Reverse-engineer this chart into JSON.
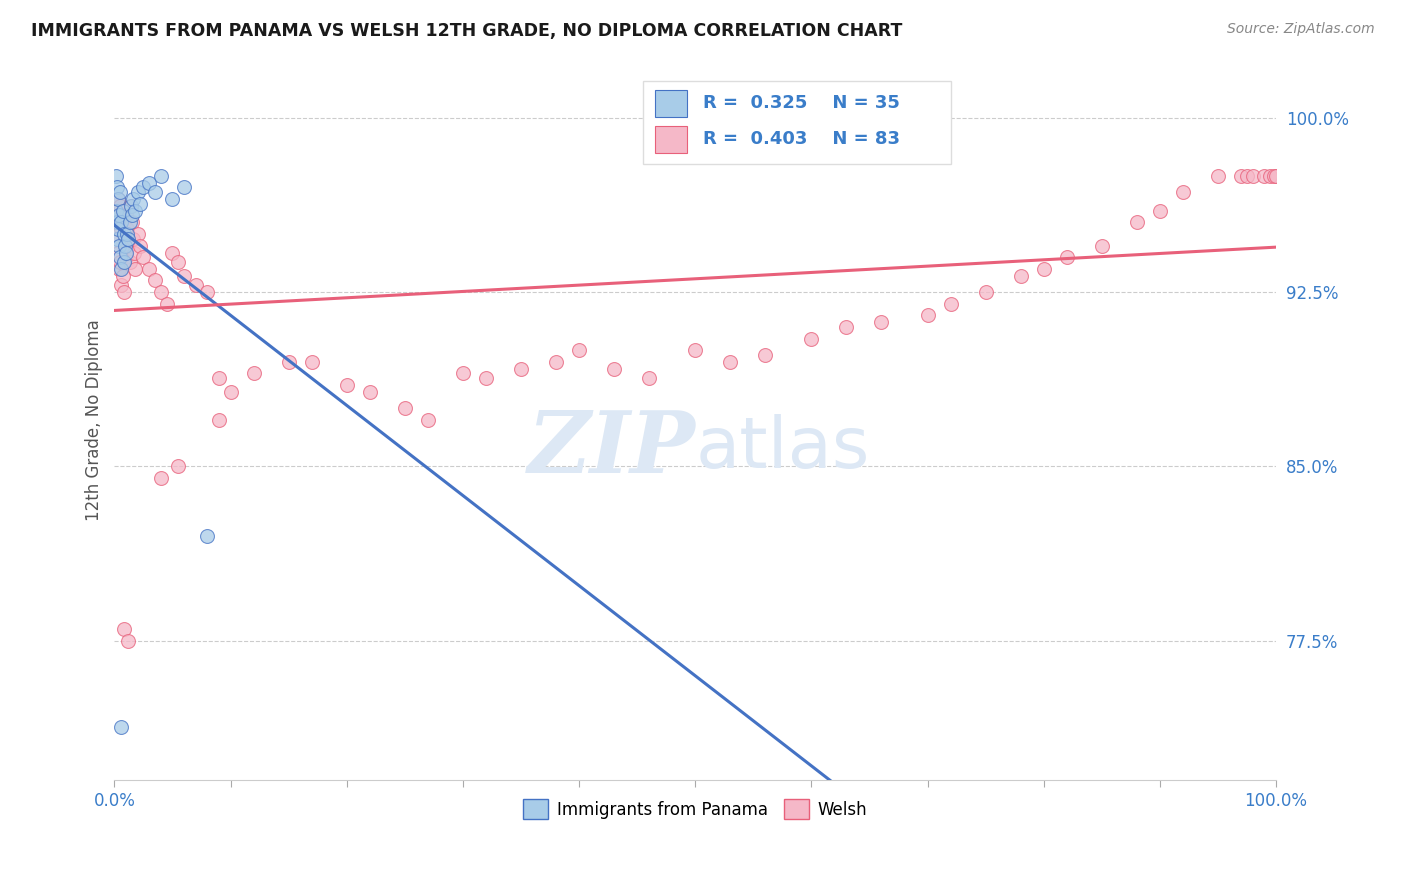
{
  "title": "IMMIGRANTS FROM PANAMA VS WELSH 12TH GRADE, NO DIPLOMA CORRELATION CHART",
  "source": "Source: ZipAtlas.com",
  "ylabel": "12th Grade, No Diploma",
  "legend_label1": "Immigrants from Panama",
  "legend_label2": "Welsh",
  "R1": 0.325,
  "N1": 35,
  "R2": 0.403,
  "N2": 83,
  "ytick_labels": [
    "100.0%",
    "92.5%",
    "85.0%",
    "77.5%"
  ],
  "ytick_values": [
    1.0,
    0.925,
    0.85,
    0.775
  ],
  "xmin": 0.0,
  "xmax": 1.0,
  "ymin": 0.715,
  "ymax": 1.025,
  "color_blue": "#a8cce8",
  "color_pink": "#f5b8c8",
  "line_blue": "#4472c4",
  "line_pink": "#e8607a",
  "watermark_color": "#dde8f5",
  "title_color": "#1a1a1a",
  "source_color": "#888888",
  "axis_color": "#3a7dc9",
  "ylabel_color": "#555555",
  "grid_color": "#cccccc",
  "legend_box_color": "#eeeeee",
  "blue_x": [
    0.001,
    0.001,
    0.002,
    0.002,
    0.002,
    0.003,
    0.003,
    0.004,
    0.004,
    0.005,
    0.005,
    0.006,
    0.006,
    0.007,
    0.008,
    0.008,
    0.009,
    0.01,
    0.011,
    0.012,
    0.013,
    0.014,
    0.015,
    0.016,
    0.018,
    0.02,
    0.022,
    0.025,
    0.03,
    0.035,
    0.04,
    0.05,
    0.06,
    0.08,
    0.006
  ],
  "blue_y": [
    0.975,
    0.96,
    0.97,
    0.955,
    0.948,
    0.965,
    0.952,
    0.958,
    0.945,
    0.968,
    0.94,
    0.955,
    0.935,
    0.96,
    0.95,
    0.938,
    0.945,
    0.942,
    0.95,
    0.948,
    0.955,
    0.962,
    0.958,
    0.965,
    0.96,
    0.968,
    0.963,
    0.97,
    0.972,
    0.968,
    0.975,
    0.965,
    0.97,
    0.82,
    0.738
  ],
  "pink_x": [
    0.001,
    0.002,
    0.002,
    0.003,
    0.003,
    0.004,
    0.004,
    0.005,
    0.005,
    0.006,
    0.006,
    0.007,
    0.007,
    0.008,
    0.008,
    0.009,
    0.01,
    0.01,
    0.011,
    0.012,
    0.013,
    0.014,
    0.015,
    0.016,
    0.017,
    0.018,
    0.02,
    0.022,
    0.025,
    0.03,
    0.035,
    0.04,
    0.045,
    0.05,
    0.055,
    0.06,
    0.07,
    0.08,
    0.09,
    0.1,
    0.12,
    0.15,
    0.17,
    0.2,
    0.22,
    0.25,
    0.27,
    0.3,
    0.32,
    0.35,
    0.38,
    0.4,
    0.43,
    0.46,
    0.5,
    0.53,
    0.56,
    0.6,
    0.63,
    0.66,
    0.7,
    0.72,
    0.75,
    0.78,
    0.8,
    0.82,
    0.85,
    0.88,
    0.9,
    0.92,
    0.95,
    0.97,
    0.975,
    0.98,
    0.99,
    0.995,
    0.998,
    1.0,
    0.09,
    0.04,
    0.055,
    0.008,
    0.012
  ],
  "pink_y": [
    0.96,
    0.955,
    0.948,
    0.965,
    0.942,
    0.958,
    0.935,
    0.962,
    0.938,
    0.952,
    0.928,
    0.96,
    0.932,
    0.955,
    0.925,
    0.948,
    0.958,
    0.94,
    0.952,
    0.945,
    0.938,
    0.962,
    0.955,
    0.948,
    0.942,
    0.935,
    0.95,
    0.945,
    0.94,
    0.935,
    0.93,
    0.925,
    0.92,
    0.942,
    0.938,
    0.932,
    0.928,
    0.925,
    0.87,
    0.882,
    0.89,
    0.895,
    0.895,
    0.885,
    0.882,
    0.875,
    0.87,
    0.89,
    0.888,
    0.892,
    0.895,
    0.9,
    0.892,
    0.888,
    0.9,
    0.895,
    0.898,
    0.905,
    0.91,
    0.912,
    0.915,
    0.92,
    0.925,
    0.932,
    0.935,
    0.94,
    0.945,
    0.955,
    0.96,
    0.968,
    0.975,
    0.975,
    0.975,
    0.975,
    0.975,
    0.975,
    0.975,
    0.975,
    0.888,
    0.845,
    0.85,
    0.78,
    0.775
  ]
}
